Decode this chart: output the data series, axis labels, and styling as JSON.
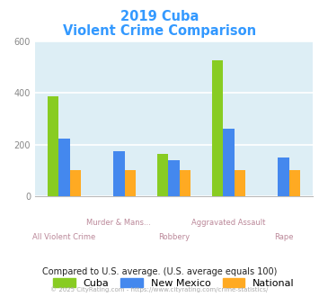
{
  "title_line1": "2019 Cuba",
  "title_line2": "Violent Crime Comparison",
  "title_color": "#3399ff",
  "categories": [
    "All Violent Crime",
    "Murder & Mans...",
    "Robbery",
    "Aggravated Assault",
    "Rape"
  ],
  "cat_labels_row1": [
    "",
    "Murder & Mans...",
    "",
    "Aggravated Assault",
    ""
  ],
  "cat_labels_row2": [
    "All Violent Crime",
    "",
    "Robbery",
    "",
    "Rape"
  ],
  "series": {
    "Cuba": [
      388,
      0,
      163,
      527,
      0
    ],
    "New Mexico": [
      222,
      175,
      138,
      260,
      150
    ],
    "National": [
      100,
      100,
      100,
      100,
      100
    ]
  },
  "colors": {
    "Cuba": "#88cc22",
    "New Mexico": "#4488ee",
    "National": "#ffaa22"
  },
  "ylim": [
    0,
    600
  ],
  "yticks": [
    0,
    200,
    400,
    600
  ],
  "background_color": "#ddeef5",
  "grid_color": "#ffffff",
  "xtick_color": "#bb8899",
  "ytick_color": "#888888",
  "footer_text": "Compared to U.S. average. (U.S. average equals 100)",
  "footer_color": "#222222",
  "copyright_text": "© 2025 CityRating.com - https://www.cityrating.com/crime-statistics/",
  "copyright_color": "#aaaaaa",
  "bar_width": 0.2
}
